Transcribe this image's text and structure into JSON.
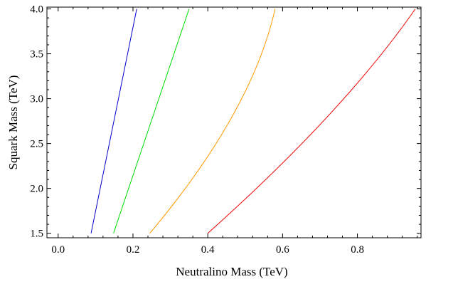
{
  "chart_data": {
    "type": "line",
    "title": "",
    "xlabel": "Neutralino Mass (TeV)",
    "ylabel": "Squark Mass (TeV)",
    "xlim": [
      -0.03,
      0.97
    ],
    "ylim": [
      1.45,
      4.02
    ],
    "grid": false,
    "x_ticks": [
      0.0,
      0.2,
      0.4,
      0.6,
      0.8
    ],
    "x_tick_labels": [
      "0.0",
      "0.2",
      "0.4",
      "0.6",
      "0.8"
    ],
    "y_ticks": [
      1.5,
      2.0,
      2.5,
      3.0,
      3.5,
      4.0
    ],
    "y_tick_labels": [
      "1.5",
      "2.0",
      "2.5",
      "3.0",
      "3.5",
      "4.0"
    ],
    "series": [
      {
        "name": "blue",
        "color": "#0000cc",
        "x": [
          0.088,
          0.21
        ],
        "y": [
          1.5,
          4.0
        ]
      },
      {
        "name": "green",
        "color": "#00dd00",
        "x": [
          0.148,
          0.35
        ],
        "y": [
          1.5,
          4.0
        ]
      },
      {
        "name": "orange",
        "color": "#ff9900",
        "x": [
          0.245,
          0.465,
          0.58
        ],
        "y": [
          1.5,
          2.8,
          4.0
        ]
      },
      {
        "name": "red",
        "color": "#ee0000",
        "x": [
          0.4,
          0.72,
          0.955
        ],
        "y": [
          1.5,
          2.8,
          4.0
        ]
      }
    ]
  }
}
